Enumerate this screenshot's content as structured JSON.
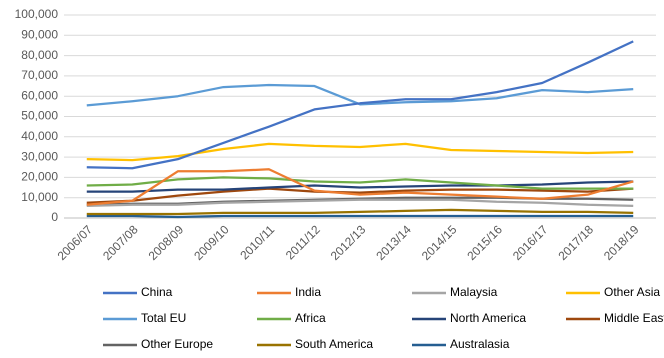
{
  "chart_data": {
    "type": "line",
    "categories": [
      "2006/07",
      "2007/08",
      "2008/09",
      "2009/10",
      "2010/11",
      "2011/12",
      "2012/13",
      "2013/14",
      "2014/15",
      "2015/16",
      "2016/17",
      "2017/18",
      "2018/19"
    ],
    "ylim": [
      0,
      100000
    ],
    "yticks": [
      0,
      {
        "value": 10000,
        "label": "10,000"
      },
      {
        "value": 20000,
        "label": "20,000"
      },
      {
        "value": 30000,
        "label": "30,000"
      },
      {
        "value": 40000,
        "label": "40,000"
      },
      {
        "value": 50000,
        "label": "50,000"
      },
      {
        "value": 60000,
        "label": "60,000"
      },
      {
        "value": 70000,
        "label": "70,000"
      },
      {
        "value": 80000,
        "label": "80,000"
      },
      {
        "value": 90000,
        "label": "90,000"
      },
      {
        "value": 100000,
        "label": "100,000"
      }
    ],
    "grid": true,
    "series": [
      {
        "name": "China",
        "color": "#4472c4",
        "values": [
          25000,
          24500,
          29000,
          37000,
          45000,
          53500,
          56500,
          58500,
          58500,
          62000,
          66500,
          76500,
          87000
        ]
      },
      {
        "name": "India",
        "color": "#ed7d31",
        "values": [
          6500,
          8500,
          23000,
          23000,
          24000,
          13500,
          11500,
          12500,
          11500,
          10500,
          9500,
          11500,
          18000
        ]
      },
      {
        "name": "Malaysia",
        "color": "#a5a5a5",
        "values": [
          6000,
          6500,
          6500,
          7500,
          8000,
          8500,
          9000,
          9000,
          9000,
          8000,
          7500,
          6500,
          6000
        ]
      },
      {
        "name": "Other Asia",
        "color": "#ffc000",
        "values": [
          29000,
          28500,
          30500,
          34000,
          36500,
          35500,
          35000,
          36500,
          33500,
          33000,
          32500,
          32000,
          32500
        ]
      },
      {
        "name": "Total EU",
        "color": "#5b9bd5",
        "values": [
          55500,
          57500,
          60000,
          64500,
          65500,
          65000,
          56000,
          57000,
          57500,
          59000,
          63000,
          62000,
          63500
        ]
      },
      {
        "name": "Africa",
        "color": "#70ad47",
        "values": [
          16000,
          16500,
          19000,
          20000,
          19500,
          18000,
          17500,
          19000,
          17500,
          16000,
          14500,
          14500,
          14500
        ]
      },
      {
        "name": "North America",
        "color": "#264478",
        "values": [
          13000,
          13000,
          14000,
          14000,
          15000,
          16000,
          15000,
          15500,
          16000,
          16000,
          16500,
          17500,
          18000
        ]
      },
      {
        "name": "Middle East",
        "color": "#9e480e",
        "values": [
          7500,
          8500,
          11000,
          13000,
          14500,
          13000,
          12500,
          13500,
          14000,
          14000,
          13500,
          13000,
          14500
        ]
      },
      {
        "name": "Other Europe",
        "color": "#636363",
        "values": [
          6500,
          7000,
          7000,
          8000,
          8500,
          9000,
          9500,
          10000,
          10000,
          10000,
          9500,
          9500,
          9000
        ]
      },
      {
        "name": "South America",
        "color": "#997300",
        "values": [
          2000,
          2000,
          2000,
          2500,
          2500,
          2500,
          3000,
          3500,
          4000,
          3500,
          3000,
          3000,
          2500
        ]
      },
      {
        "name": "Australasia",
        "color": "#255e91",
        "values": [
          1000,
          1000,
          500,
          1000,
          1000,
          1000,
          1000,
          1000,
          1000,
          1000,
          1000,
          1000,
          1000
        ]
      }
    ]
  }
}
